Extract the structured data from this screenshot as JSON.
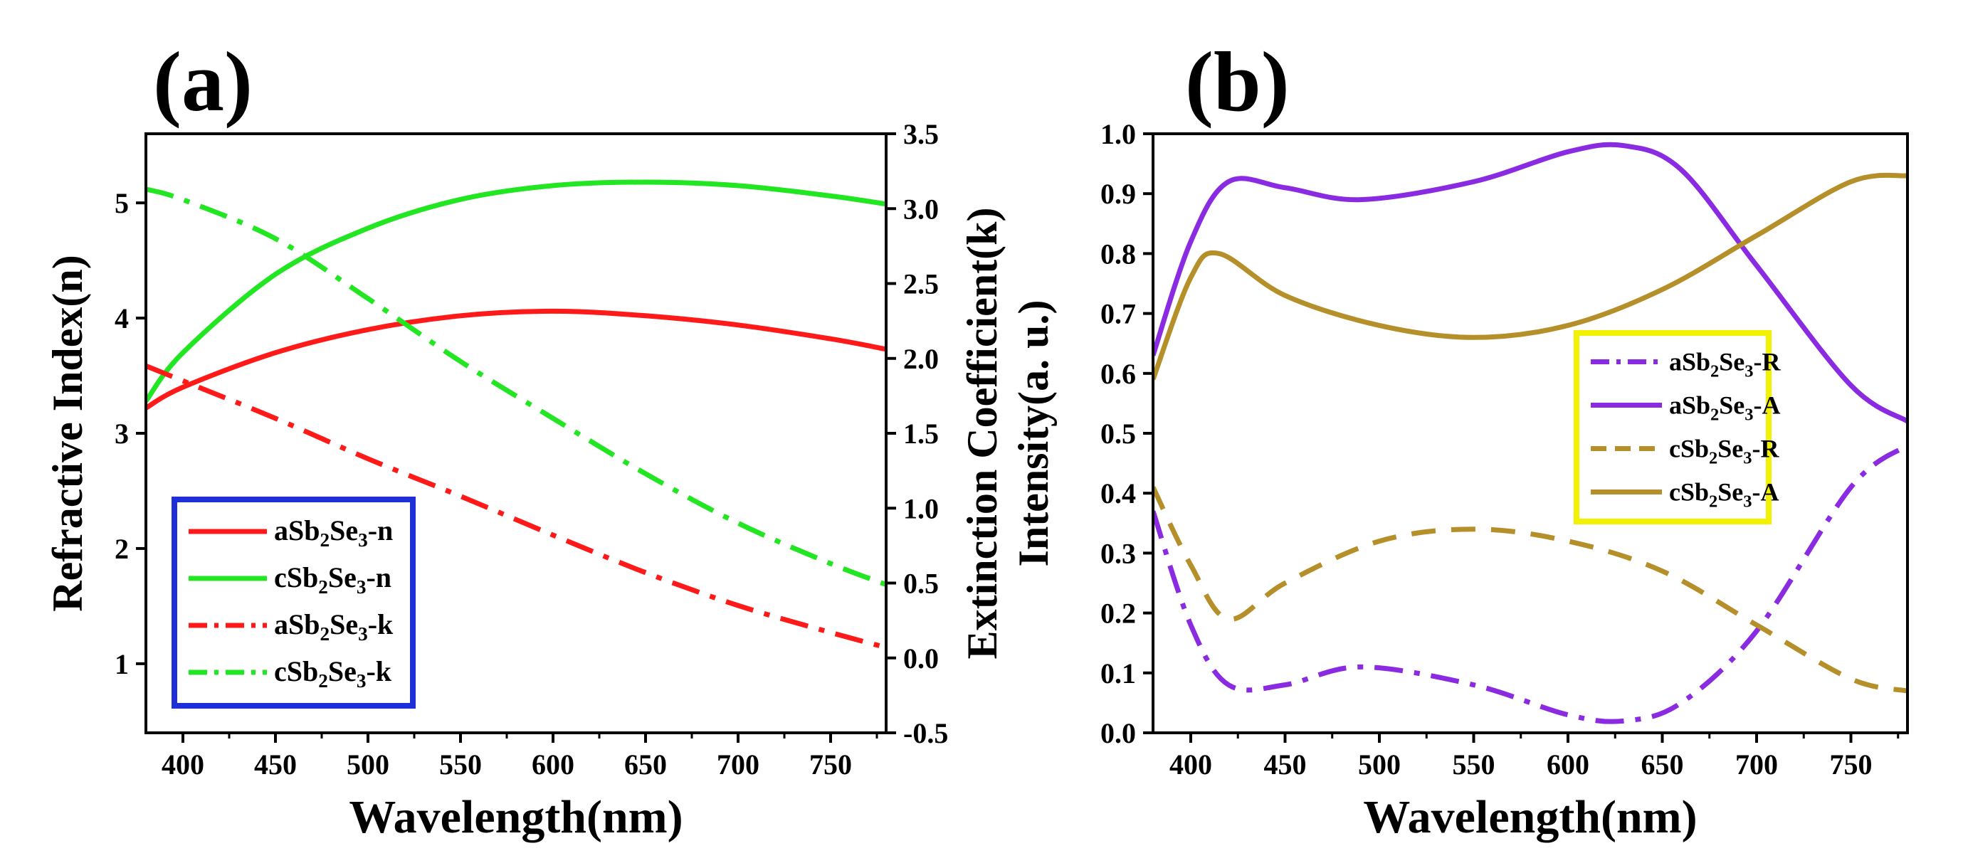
{
  "chart_data": [
    {
      "panel_label": "(a)",
      "type": "line",
      "xlabel": "Wavelength(nm)",
      "ylabel": "Refractive Index(n)",
      "ylabel_right": "Extinction Coefficient(k)",
      "xlim": [
        380,
        780
      ],
      "ylim": [
        0.4,
        5.6
      ],
      "ylim_right": [
        -0.5,
        3.5
      ],
      "x_ticks": [
        "400",
        "450",
        "500",
        "550",
        "600",
        "650",
        "700",
        "750"
      ],
      "y_ticks": [
        "1",
        "2",
        "3",
        "4",
        "5"
      ],
      "y_ticks_right": [
        "-0.5",
        "0.0",
        "0.5",
        "1.0",
        "1.5",
        "2.0",
        "2.5",
        "3.0",
        "3.5"
      ],
      "legend_position": "bottom-left",
      "legend_border_color": "#1f2fd8",
      "series": [
        {
          "name": "aSb2Se3-n",
          "legend_base": "aSb",
          "legend_mid": "Se",
          "legend_tail": "-n",
          "sub1": "2",
          "sub2": "3",
          "axis": "left",
          "color": "#ff1a1a",
          "dash": "solid",
          "x": [
            380,
            400,
            450,
            500,
            550,
            600,
            650,
            700,
            750,
            780
          ],
          "y": [
            3.22,
            3.4,
            3.7,
            3.9,
            4.02,
            4.06,
            4.02,
            3.94,
            3.82,
            3.73
          ]
        },
        {
          "name": "cSb2Se3-n",
          "legend_base": "cSb",
          "legend_mid": "Se",
          "legend_tail": "-n",
          "sub1": "2",
          "sub2": "3",
          "axis": "left",
          "color": "#22e622",
          "dash": "solid",
          "x": [
            380,
            400,
            450,
            500,
            550,
            600,
            650,
            700,
            750,
            780
          ],
          "y": [
            3.28,
            3.7,
            4.38,
            4.78,
            5.03,
            5.15,
            5.18,
            5.15,
            5.06,
            4.99
          ]
        },
        {
          "name": "aSb2Se3-k",
          "legend_base": "aSb",
          "legend_mid": "Se",
          "legend_tail": "-k",
          "sub1": "2",
          "sub2": "3",
          "axis": "right",
          "color": "#ff1a1a",
          "dash": "dashdot",
          "x": [
            380,
            400,
            450,
            500,
            550,
            600,
            650,
            700,
            750,
            780
          ],
          "y": [
            1.95,
            1.85,
            1.6,
            1.33,
            1.08,
            0.82,
            0.57,
            0.35,
            0.17,
            0.07
          ]
        },
        {
          "name": "cSb2Se3-k",
          "legend_base": "cSb",
          "legend_mid": "Se",
          "legend_tail": "-k",
          "sub1": "2",
          "sub2": "3",
          "axis": "right",
          "color": "#22e622",
          "dash": "dashdot",
          "x": [
            380,
            400,
            450,
            500,
            550,
            600,
            650,
            700,
            750,
            780
          ],
          "y": [
            3.13,
            3.06,
            2.8,
            2.4,
            1.98,
            1.6,
            1.23,
            0.9,
            0.63,
            0.49
          ]
        }
      ]
    },
    {
      "panel_label": "(b)",
      "type": "line",
      "xlabel": "Wavelength(nm)",
      "ylabel": "Intensity(a. u.)",
      "xlim": [
        380,
        780
      ],
      "ylim": [
        0.0,
        1.0
      ],
      "x_ticks": [
        "400",
        "450",
        "500",
        "550",
        "600",
        "650",
        "700",
        "750"
      ],
      "y_ticks": [
        "0.0",
        "0.1",
        "0.2",
        "0.3",
        "0.4",
        "0.5",
        "0.6",
        "0.7",
        "0.8",
        "0.9",
        "1.0"
      ],
      "legend_position": "right",
      "legend_border_color": "#f2f200",
      "series": [
        {
          "name": "aSb2Se3-R",
          "legend_base": "aSb",
          "legend_mid": "Se",
          "legend_tail": "-R",
          "sub1": "2",
          "sub2": "3",
          "axis": "left",
          "color": "#8a2be2",
          "dash": "dashdot",
          "x": [
            380,
            400,
            420,
            450,
            490,
            550,
            600,
            630,
            660,
            700,
            750,
            780
          ],
          "y": [
            0.37,
            0.18,
            0.08,
            0.08,
            0.11,
            0.08,
            0.03,
            0.02,
            0.05,
            0.17,
            0.41,
            0.48
          ]
        },
        {
          "name": "aSb2Se3-A",
          "legend_base": "aSb",
          "legend_mid": "Se",
          "legend_tail": "-A",
          "sub1": "2",
          "sub2": "3",
          "axis": "left",
          "color": "#8a2be2",
          "dash": "solid",
          "x": [
            380,
            400,
            420,
            450,
            490,
            550,
            600,
            630,
            660,
            700,
            750,
            780
          ],
          "y": [
            0.63,
            0.82,
            0.92,
            0.91,
            0.89,
            0.92,
            0.97,
            0.98,
            0.94,
            0.78,
            0.58,
            0.52
          ]
        },
        {
          "name": "cSb2Se3-R",
          "legend_base": "cSb",
          "legend_mid": "Se",
          "legend_tail": "-R",
          "sub1": "2",
          "sub2": "3",
          "axis": "left",
          "color": "#b5902a",
          "dash": "dashed",
          "x": [
            380,
            400,
            420,
            450,
            500,
            550,
            600,
            650,
            700,
            750,
            780
          ],
          "y": [
            0.41,
            0.28,
            0.19,
            0.25,
            0.32,
            0.34,
            0.32,
            0.27,
            0.18,
            0.09,
            0.07
          ]
        },
        {
          "name": "cSb2Se3-A",
          "legend_base": "cSb",
          "legend_mid": "Se",
          "legend_tail": "-A",
          "sub1": "2",
          "sub2": "3",
          "axis": "left",
          "color": "#b5902a",
          "dash": "solid",
          "x": [
            380,
            400,
            415,
            450,
            500,
            550,
            600,
            650,
            700,
            750,
            780
          ],
          "y": [
            0.59,
            0.76,
            0.8,
            0.73,
            0.68,
            0.66,
            0.68,
            0.74,
            0.83,
            0.92,
            0.93
          ]
        }
      ]
    }
  ]
}
